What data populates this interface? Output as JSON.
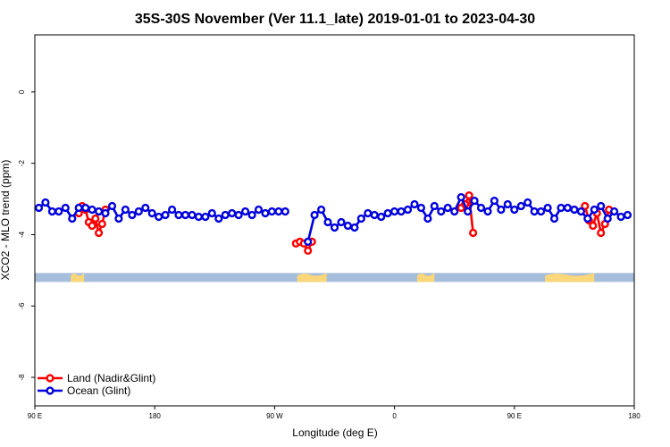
{
  "chart_data": {
    "type": "line",
    "title": "35S-30S November (Ver 11.1_late)   2019-01-01 to 2023-04-30",
    "xlabel": "Longitude (deg E)",
    "ylabel": "XCO2 - MLO trend (ppm)",
    "xlim": [
      90,
      540
    ],
    "ylim": [
      -8.8,
      1.6
    ],
    "xticks": [
      {
        "value": 90,
        "label": "90 E"
      },
      {
        "value": 180,
        "label": "180"
      },
      {
        "value": 270,
        "label": "90 W"
      },
      {
        "value": 360,
        "label": "0"
      },
      {
        "value": 450,
        "label": "90 E"
      },
      {
        "value": 540,
        "label": "180"
      }
    ],
    "yticks": [
      0,
      -2,
      -4,
      -6,
      -8
    ],
    "legend": {
      "position": "bottom-left",
      "entries": [
        {
          "name": "Land (Nadir&Glint)",
          "color": "#ff0000"
        },
        {
          "name": "Ocean (Glint)",
          "color": "#0000dd"
        }
      ]
    },
    "land_mask": {
      "level": -5.2,
      "ocean_color": "#a6bddb",
      "land_color": "#fbd77a",
      "land_segments": [
        [
          117,
          127
        ],
        [
          287,
          309
        ],
        [
          377,
          390
        ],
        [
          473,
          510
        ]
      ]
    },
    "series": [
      {
        "name": "Land (Nadir&Glint)",
        "color": "#ff0000",
        "segments": [
          [
            [
              123,
              -3.4
            ],
            [
              125.5,
              -3.2
            ],
            [
              128,
              -3.3
            ],
            [
              130.5,
              -3.65
            ],
            [
              133,
              -3.75
            ],
            [
              135.5,
              -3.55
            ],
            [
              138,
              -3.95
            ],
            [
              140.5,
              -3.7
            ],
            [
              143,
              -3.3
            ]
          ],
          [
            [
              286,
              -4.25
            ],
            [
              289,
              -4.2
            ],
            [
              292,
              -4.25
            ],
            [
              295,
              -4.45
            ],
            [
              298,
              -4.2
            ]
          ],
          [
            [
              410,
              -3.25
            ],
            [
              413,
              -3.15
            ],
            [
              416,
              -2.9
            ],
            [
              419,
              -3.95
            ]
          ],
          [
            [
              503,
              -3.2
            ],
            [
              506,
              -3.6
            ],
            [
              509,
              -3.75
            ],
            [
              512,
              -3.4
            ],
            [
              515,
              -3.95
            ],
            [
              518,
              -3.7
            ],
            [
              521,
              -3.3
            ]
          ]
        ]
      },
      {
        "name": "Ocean (Glint)",
        "color": "#0000dd",
        "segments": [
          [
            [
              93,
              -3.25
            ],
            [
              98,
              -3.1
            ],
            [
              103,
              -3.35
            ],
            [
              108,
              -3.35
            ],
            [
              113,
              -3.25
            ],
            [
              118,
              -3.55
            ],
            [
              123,
              -3.25
            ],
            [
              128,
              -3.25
            ],
            [
              133,
              -3.3
            ],
            [
              138,
              -3.35
            ],
            [
              143,
              -3.4
            ],
            [
              148,
              -3.2
            ],
            [
              153,
              -3.55
            ],
            [
              158,
              -3.3
            ],
            [
              163,
              -3.45
            ],
            [
              168,
              -3.35
            ],
            [
              173,
              -3.25
            ],
            [
              178,
              -3.4
            ],
            [
              183,
              -3.5
            ],
            [
              188,
              -3.45
            ],
            [
              193,
              -3.3
            ],
            [
              198,
              -3.45
            ],
            [
              203,
              -3.45
            ],
            [
              208,
              -3.45
            ],
            [
              213,
              -3.5
            ],
            [
              218,
              -3.5
            ],
            [
              223,
              -3.4
            ],
            [
              228,
              -3.55
            ],
            [
              233,
              -3.45
            ],
            [
              238,
              -3.4
            ],
            [
              243,
              -3.45
            ],
            [
              248,
              -3.35
            ],
            [
              253,
              -3.45
            ],
            [
              258,
              -3.3
            ],
            [
              263,
              -3.4
            ],
            [
              268,
              -3.35
            ],
            [
              273,
              -3.35
            ],
            [
              278,
              -3.35
            ]
          ],
          [
            [
              295,
              -4.2
            ],
            [
              300,
              -3.45
            ],
            [
              305,
              -3.3
            ],
            [
              310,
              -3.65
            ],
            [
              315,
              -3.8
            ],
            [
              320,
              -3.65
            ],
            [
              325,
              -3.75
            ],
            [
              330,
              -3.8
            ],
            [
              335,
              -3.55
            ],
            [
              340,
              -3.4
            ],
            [
              345,
              -3.45
            ],
            [
              350,
              -3.5
            ],
            [
              355,
              -3.4
            ],
            [
              360,
              -3.35
            ],
            [
              365,
              -3.35
            ],
            [
              370,
              -3.3
            ],
            [
              375,
              -3.15
            ],
            [
              380,
              -3.25
            ],
            [
              385,
              -3.55
            ],
            [
              390,
              -3.2
            ],
            [
              395,
              -3.35
            ],
            [
              400,
              -3.25
            ],
            [
              405,
              -3.35
            ],
            [
              410,
              -2.95
            ],
            [
              415,
              -3.35
            ],
            [
              420,
              -3.05
            ],
            [
              425,
              -3.25
            ],
            [
              430,
              -3.35
            ],
            [
              435,
              -3.05
            ],
            [
              440,
              -3.3
            ],
            [
              445,
              -3.15
            ],
            [
              450,
              -3.3
            ],
            [
              455,
              -3.2
            ],
            [
              460,
              -3.1
            ],
            [
              465,
              -3.35
            ],
            [
              470,
              -3.35
            ],
            [
              475,
              -3.25
            ],
            [
              480,
              -3.55
            ],
            [
              485,
              -3.25
            ],
            [
              490,
              -3.25
            ],
            [
              495,
              -3.3
            ],
            [
              500,
              -3.35
            ],
            [
              505,
              -3.55
            ],
            [
              510,
              -3.3
            ],
            [
              515,
              -3.2
            ],
            [
              520,
              -3.55
            ],
            [
              525,
              -3.35
            ],
            [
              530,
              -3.5
            ],
            [
              535,
              -3.45
            ]
          ]
        ]
      }
    ]
  }
}
